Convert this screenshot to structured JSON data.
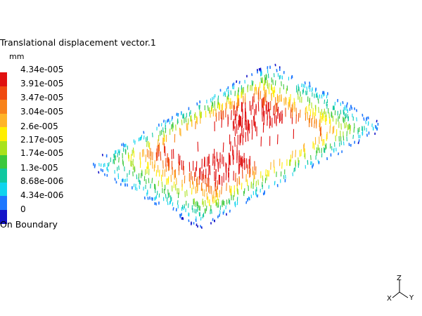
{
  "legend": {
    "title": "Translational displacement vector.1",
    "unit": "mm",
    "levels": [
      {
        "label": "4.34e-005",
        "color": "#e01010"
      },
      {
        "label": "3.91e-005",
        "color": "#f04a10"
      },
      {
        "label": "3.47e-005",
        "color": "#f8821a"
      },
      {
        "label": "3.04e-005",
        "color": "#ffb428"
      },
      {
        "label": "2.6e-005",
        "color": "#ffee00"
      },
      {
        "label": "2.17e-005",
        "color": "#a8e21c"
      },
      {
        "label": "1.74e-005",
        "color": "#3cc83c"
      },
      {
        "label": "1.3e-005",
        "color": "#10c8a0"
      },
      {
        "label": "8.68e-006",
        "color": "#10d4ee"
      },
      {
        "label": "4.34e-006",
        "color": "#1e78ff"
      },
      {
        "label": "0",
        "color": "#1414c8"
      }
    ],
    "footer": "On Boundary"
  },
  "axes": {
    "z_label": "Z",
    "x_label": "X",
    "y_label": "Y"
  }
}
